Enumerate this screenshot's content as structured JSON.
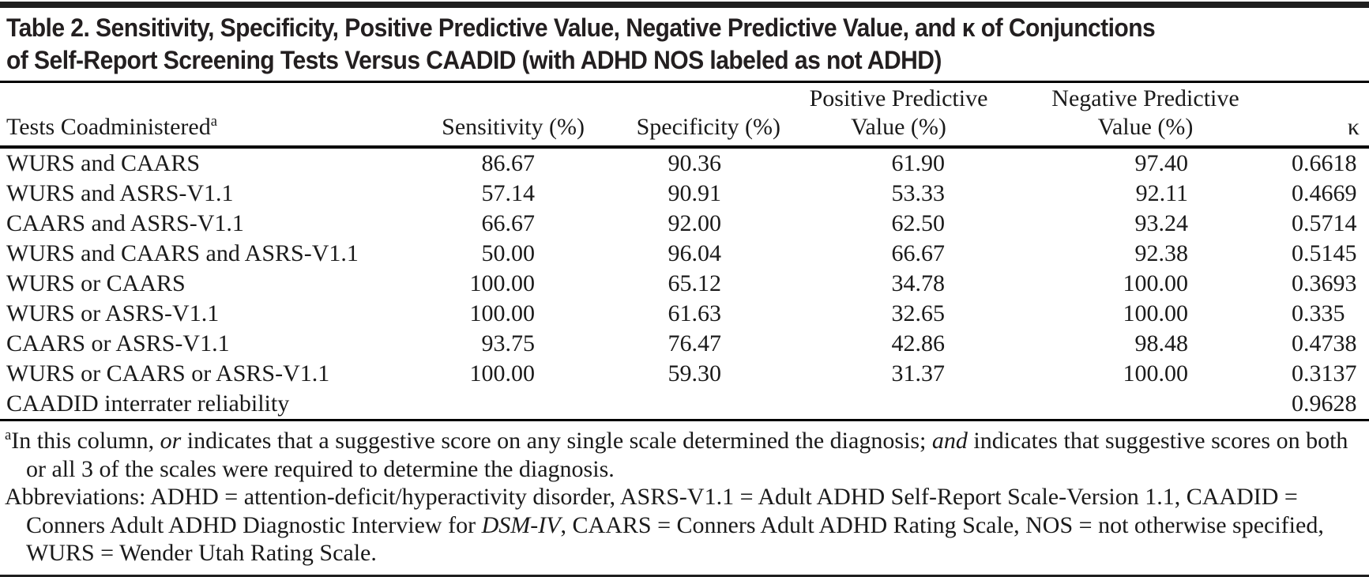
{
  "colors": {
    "text": "#1a1a1a",
    "title": "#231f20",
    "rule": "#000000",
    "bar": "#1f1f1f"
  },
  "title": {
    "lines": [
      "Table 2. Sensitivity, Specificity, Positive Predictive Value, Negative Predictive Value, and κ of Conjunctions",
      "of Self-Report Screening Tests Versus CAADID (with ADHD NOS labeled as not ADHD)"
    ]
  },
  "table": {
    "headers": {
      "tests_label": "Tests Coadministered",
      "tests_sup": "a",
      "sensitivity": "Sensitivity (%)",
      "specificity": "Specificity (%)",
      "ppv_line1": "Positive Predictive",
      "ppv_line2": "Value (%)",
      "npv_line1": "Negative Predictive",
      "npv_line2": "Value (%)",
      "kappa": "κ"
    },
    "rows": [
      [
        "WURS and CAARS",
        "86.67",
        "90.36",
        "61.90",
        "97.40",
        "0.6618"
      ],
      [
        "WURS and ASRS-V1.1",
        "57.14",
        "90.91",
        "53.33",
        "92.11",
        "0.4669"
      ],
      [
        "CAARS and ASRS-V1.1",
        "66.67",
        "92.00",
        "62.50",
        "93.24",
        "0.5714"
      ],
      [
        "WURS and CAARS and ASRS-V1.1",
        "50.00",
        "96.04",
        "66.67",
        "92.38",
        "0.5145"
      ],
      [
        "WURS or CAARS",
        "100.00",
        "65.12",
        "34.78",
        "100.00",
        "0.3693"
      ],
      [
        "WURS or ASRS-V1.1",
        "100.00",
        "61.63",
        "32.65",
        "100.00",
        "0.335"
      ],
      [
        "CAARS or ASRS-V1.1",
        "93.75",
        "76.47",
        "42.86",
        "98.48",
        "0.4738"
      ],
      [
        "WURS or CAARS or ASRS-V1.1",
        "100.00",
        "59.30",
        "31.37",
        "100.00",
        "0.3137"
      ],
      [
        "CAADID interrater reliability",
        "",
        "",
        "",
        "",
        "0.9628"
      ]
    ]
  },
  "footnotes": {
    "note_a": [
      {
        "text": "a",
        "sup": true
      },
      {
        "text": "In this column, "
      },
      {
        "text": "or",
        "italic": true
      },
      {
        "text": " indicates that a suggestive score on any single scale determined the diagnosis; "
      },
      {
        "text": "and",
        "italic": true
      },
      {
        "text": " indicates that suggestive scores on both or all 3 of the scales were required to determine the diagnosis."
      }
    ],
    "abbreviations": [
      {
        "text": "Abbreviations: ADHD = attention-deficit/hyperactivity disorder, ASRS-V1.1 = Adult ADHD Self-Report Scale-Version 1.1, CAADID = Conners Adult ADHD Diagnostic Interview for "
      },
      {
        "text": "DSM-IV",
        "italic": true
      },
      {
        "text": ", CAARS = Conners Adult ADHD Rating Scale, NOS = not otherwise specified, WURS = Wender Utah Rating Scale."
      }
    ]
  }
}
